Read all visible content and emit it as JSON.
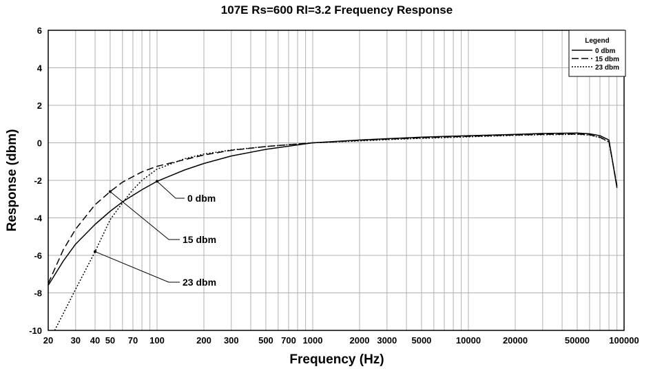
{
  "chart_data": {
    "type": "line",
    "title": "107E Rs=600 Rl=3.2  Frequency Response",
    "xlabel": "Frequency (Hz)",
    "ylabel": "Response (dbm)",
    "xscale": "log",
    "xlim": [
      20,
      100000
    ],
    "ylim": [
      -10,
      6
    ],
    "x_tick_values": [
      20,
      30,
      40,
      50,
      70,
      100,
      200,
      300,
      500,
      700,
      1000,
      2000,
      3000,
      5000,
      10000,
      20000,
      50000,
      100000
    ],
    "x_tick_labels": [
      "20",
      "30",
      "40",
      "50",
      "70",
      "100",
      "200",
      "300",
      "500",
      "700",
      "1000",
      "2000",
      "3000",
      "5000",
      "10000",
      "20000",
      "50000",
      "100000"
    ],
    "y_ticks": [
      -10,
      -8,
      -6,
      -4,
      -2,
      0,
      2,
      4,
      6
    ],
    "grid": true,
    "legend": {
      "title": "Legend",
      "position": "top-right",
      "entries": [
        "0 dbm",
        "15 dbm",
        "23 dbm"
      ]
    },
    "series": [
      {
        "name": "0 dbm",
        "style": "solid",
        "x": [
          20,
          25,
          30,
          40,
          50,
          60,
          70,
          80,
          100,
          150,
          200,
          300,
          500,
          700,
          1000,
          2000,
          3000,
          5000,
          10000,
          20000,
          30000,
          50000,
          60000,
          70000,
          80000,
          90000
        ],
        "y": [
          -7.6,
          -6.3,
          -5.4,
          -4.35,
          -3.65,
          -3.15,
          -2.8,
          -2.5,
          -2.05,
          -1.45,
          -1.1,
          -0.7,
          -0.35,
          -0.18,
          0.0,
          0.15,
          0.22,
          0.3,
          0.38,
          0.45,
          0.5,
          0.52,
          0.48,
          0.38,
          0.15,
          -2.4
        ]
      },
      {
        "name": "15 dbm",
        "style": "dashed",
        "x": [
          20,
          25,
          30,
          40,
          50,
          60,
          70,
          80,
          100,
          150,
          200,
          300,
          500,
          700,
          1000,
          2000,
          3000,
          5000,
          10000,
          20000,
          30000,
          50000,
          60000,
          70000,
          80000,
          90000
        ],
        "y": [
          -7.5,
          -5.7,
          -4.6,
          -3.3,
          -2.6,
          -2.1,
          -1.8,
          -1.55,
          -1.25,
          -0.9,
          -0.65,
          -0.4,
          -0.2,
          -0.1,
          0.0,
          0.13,
          0.2,
          0.27,
          0.35,
          0.42,
          0.45,
          0.47,
          0.43,
          0.3,
          0.05,
          -2.3
        ]
      },
      {
        "name": "23 dbm",
        "style": "dotted",
        "x": [
          22,
          25,
          30,
          40,
          50,
          60,
          70,
          80,
          100,
          150,
          200,
          300,
          500,
          700,
          1000,
          2000,
          3000,
          5000,
          10000,
          20000,
          30000,
          50000,
          60000,
          70000,
          80000,
          90000
        ],
        "y": [
          -10.0,
          -9.1,
          -7.8,
          -5.8,
          -4.1,
          -3.2,
          -2.5,
          -2.0,
          -1.4,
          -0.85,
          -0.6,
          -0.38,
          -0.2,
          -0.1,
          0.0,
          0.1,
          0.17,
          0.24,
          0.32,
          0.4,
          0.43,
          0.45,
          0.41,
          0.28,
          0.05,
          -2.3
        ]
      }
    ],
    "annotations": [
      {
        "text": "0 dbm",
        "series": "0 dbm",
        "point_x": 100,
        "point_y": -2.05
      },
      {
        "text": "15 dbm",
        "series": "15 dbm",
        "point_x": 50,
        "point_y": -2.6
      },
      {
        "text": "23 dbm",
        "series": "23 dbm",
        "point_x": 40,
        "point_y": -5.8
      }
    ]
  }
}
